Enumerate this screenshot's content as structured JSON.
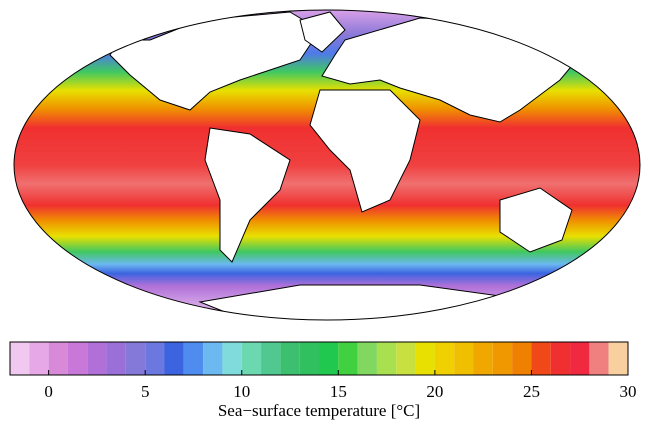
{
  "colorbar": {
    "label": "Sea−surface temperature [°C]",
    "lim": [
      -2,
      30
    ],
    "ticks": [
      0,
      5,
      10,
      15,
      20,
      25,
      30
    ],
    "levels": [
      -2,
      -1,
      0,
      1,
      2,
      3,
      4,
      5,
      6,
      7,
      8,
      9,
      10,
      11,
      12,
      13,
      14,
      15,
      16,
      17,
      18,
      19,
      20,
      21,
      22,
      23,
      24,
      25,
      26,
      27,
      28,
      29,
      30
    ],
    "colors": [
      "#f0c8f0",
      "#e6a8e6",
      "#d88ad8",
      "#c878d8",
      "#b070d8",
      "#9a70d8",
      "#8478d8",
      "#6a78e0",
      "#3c64e0",
      "#4e8cf0",
      "#6cb8f0",
      "#80dcdc",
      "#6cd8b0",
      "#50c890",
      "#3cc070",
      "#30c060",
      "#20c850",
      "#40d040",
      "#80d860",
      "#a8e050",
      "#c8e040",
      "#e8e000",
      "#f0d000",
      "#f0c000",
      "#f0a800",
      "#f09800",
      "#f08000",
      "#f04818",
      "#f03030",
      "#f02840",
      "#f08080",
      "#f8d0a0"
    ]
  }
}
